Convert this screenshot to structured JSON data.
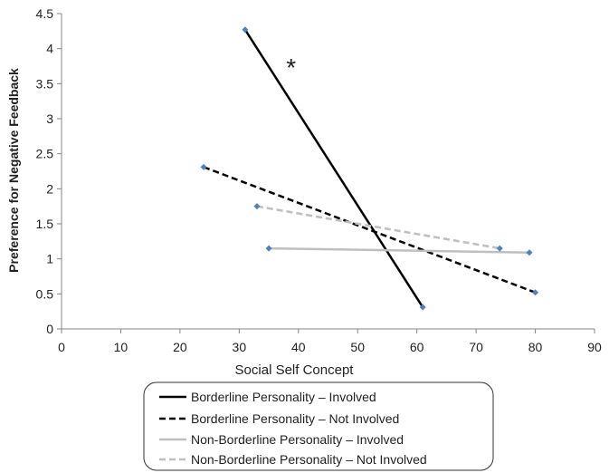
{
  "chart_data": {
    "type": "line",
    "title": "",
    "xlabel": "Social Self Concept",
    "ylabel": "Preference for Negative Feedback",
    "xlim": [
      0,
      90
    ],
    "ylim": [
      0,
      4.5
    ],
    "xticks": [
      0,
      10,
      20,
      30,
      40,
      50,
      60,
      70,
      80,
      90
    ],
    "yticks": [
      0,
      0.5,
      1,
      1.5,
      2,
      2.5,
      3,
      3.5,
      4,
      4.5
    ],
    "x_tick_labels": [
      "0",
      "10",
      "20",
      "30",
      "40",
      "50",
      "60",
      "70",
      "80",
      "90"
    ],
    "y_tick_labels": [
      "0",
      "0.5",
      "1",
      "1.5",
      "2",
      "2.5",
      "3",
      "3.5",
      "4",
      "4.5"
    ],
    "grid": false,
    "legend_position": "bottom",
    "marker_color": "#4f81bd",
    "series": [
      {
        "name": "Borderline Personality – Involved",
        "color": "#000000",
        "dash": "solid",
        "points": [
          [
            31,
            4.27
          ],
          [
            61,
            0.31
          ]
        ]
      },
      {
        "name": "Borderline Personality – Not Involved",
        "color": "#000000",
        "dash": "dashed",
        "points": [
          [
            24,
            2.31
          ],
          [
            80,
            0.52
          ]
        ]
      },
      {
        "name": "Non-Borderline Personality – Involved",
        "color": "#bfbfbf",
        "dash": "solid",
        "points": [
          [
            35,
            1.15
          ],
          [
            79,
            1.09
          ]
        ]
      },
      {
        "name": "Non-Borderline Personality – Not Involved",
        "color": "#bfbfbf",
        "dash": "dashed",
        "points": [
          [
            33,
            1.75
          ],
          [
            74,
            1.15
          ]
        ]
      }
    ],
    "annotations": [
      {
        "text": "*",
        "x": 39,
        "y": 3.8
      }
    ]
  }
}
